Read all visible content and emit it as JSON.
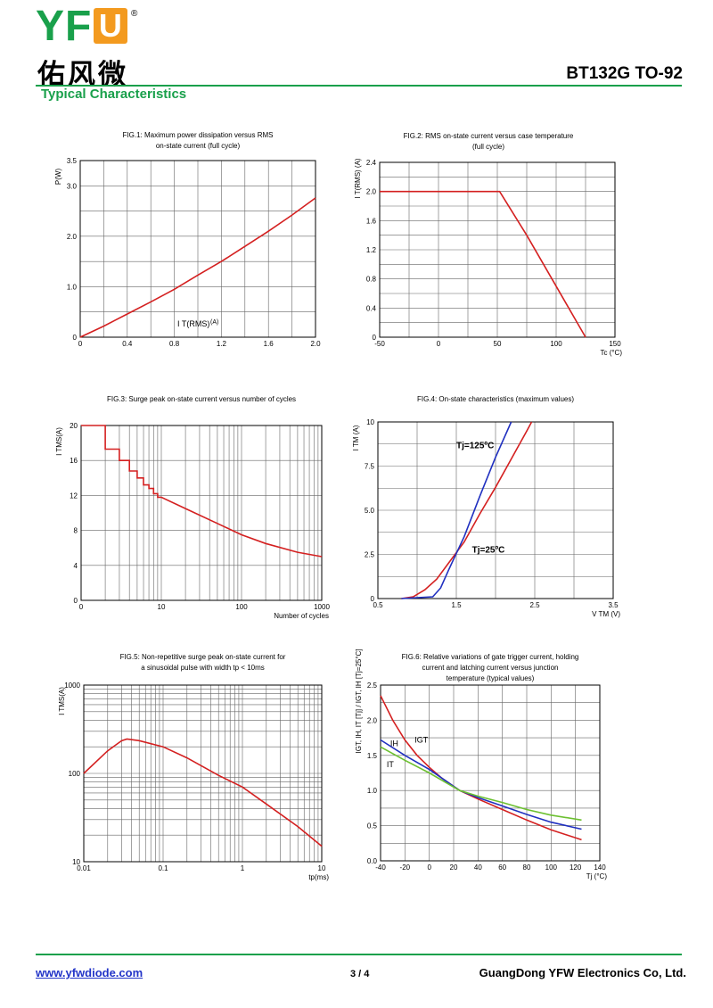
{
  "header": {
    "logo_text": "YFW",
    "logo_cn": "佑风微",
    "registered_mark": "®",
    "doc_title": "BT132G TO-92",
    "section_title": "Typical Characteristics"
  },
  "footer": {
    "website": "www.yfwdiode.com",
    "page": "3 / 4",
    "company": "GuangDong YFW Electronics Co, Ltd."
  },
  "colors": {
    "brand_green": "#19a04b",
    "brand_orange": "#f39a1f",
    "curve_red": "#d42020",
    "curve_blue": "#2030c0",
    "curve_green": "#6cc030",
    "link_blue": "#2234c8"
  },
  "chart_data": [
    {
      "id": "fig1",
      "type": "line",
      "title": [
        "FIG.1: Maximum power dissipation versus RMS",
        "on-state current (full cycle)"
      ],
      "xlabel": "I T(RMS) (A)",
      "ylabel": "P(W)",
      "xlim": [
        0,
        2.0
      ],
      "ylim": [
        0,
        3.5
      ],
      "xticks": [
        {
          "v": 0,
          "l": "0"
        },
        {
          "v": 0.4,
          "l": "0.4"
        },
        {
          "v": 0.8,
          "l": "0.8"
        },
        {
          "v": 1.2,
          "l": "1.2"
        },
        {
          "v": 1.6,
          "l": "1.6"
        },
        {
          "v": 2.0,
          "l": "2.0"
        }
      ],
      "yticks": [
        {
          "v": 0,
          "l": "0"
        },
        {
          "v": 1.0,
          "l": "1.0"
        },
        {
          "v": 2.0,
          "l": "2.0"
        },
        {
          "v": 3.0,
          "l": "3.0"
        },
        {
          "v": 3.5,
          "l": "3.5"
        }
      ],
      "grid_x": [
        0.2,
        0.4,
        0.6,
        0.8,
        1.0,
        1.2,
        1.4,
        1.6,
        1.8
      ],
      "grid_y": [
        0.5,
        1.0,
        1.5,
        2.0,
        2.5,
        3.0
      ],
      "series": [
        {
          "color": "#d42020",
          "points": [
            [
              0,
              0
            ],
            [
              0.2,
              0.22
            ],
            [
              0.4,
              0.46
            ],
            [
              0.6,
              0.7
            ],
            [
              0.8,
              0.95
            ],
            [
              1.0,
              1.23
            ],
            [
              1.2,
              1.5
            ],
            [
              1.4,
              1.8
            ],
            [
              1.6,
              2.1
            ],
            [
              1.8,
              2.42
            ],
            [
              2.0,
              2.76
            ]
          ]
        }
      ]
    },
    {
      "id": "fig2",
      "type": "line",
      "title": [
        "FIG.2: RMS on-state current versus case temperature",
        "(full cycle)"
      ],
      "xlabel": "Tc (°C)",
      "ylabel": "I T(RMS) (A)",
      "xlim": [
        -50,
        150
      ],
      "ylim": [
        0,
        2.4
      ],
      "xticks": [
        {
          "v": -50,
          "l": "-50"
        },
        {
          "v": 0,
          "l": "0"
        },
        {
          "v": 50,
          "l": "50"
        },
        {
          "v": 100,
          "l": "100"
        },
        {
          "v": 150,
          "l": "150"
        }
      ],
      "yticks": [
        {
          "v": 0,
          "l": "0"
        },
        {
          "v": 0.4,
          "l": "0.4"
        },
        {
          "v": 0.8,
          "l": "0.8"
        },
        {
          "v": 1.2,
          "l": "1.2"
        },
        {
          "v": 1.6,
          "l": "1.6"
        },
        {
          "v": 2.0,
          "l": "2.0"
        },
        {
          "v": 2.4,
          "l": "2.4"
        }
      ],
      "grid_x": [
        -25,
        0,
        25,
        50,
        75,
        100,
        125
      ],
      "grid_y": [
        0.2,
        0.4,
        0.6,
        0.8,
        1.0,
        1.2,
        1.4,
        1.6,
        1.8,
        2.0,
        2.2
      ],
      "series": [
        {
          "color": "#d42020",
          "points": [
            [
              -50,
              2.0
            ],
            [
              52,
              2.0
            ],
            [
              75,
              1.4
            ],
            [
              100,
              0.7
            ],
            [
              125,
              0
            ]
          ]
        }
      ]
    },
    {
      "id": "fig3",
      "type": "line",
      "title": [
        "FIG.3: Surge peak on-state current versus number of cycles"
      ],
      "xlabel": "Number of cycles",
      "ylabel": "I TMS(A)",
      "xscale": "log",
      "xlim": [
        1,
        1000
      ],
      "ylim": [
        0,
        20
      ],
      "xticks": [
        {
          "v": 1,
          "l": "0"
        },
        {
          "v": 10,
          "l": "10"
        },
        {
          "v": 100,
          "l": "100"
        },
        {
          "v": 1000,
          "l": "1000"
        }
      ],
      "yticks": [
        {
          "v": 0,
          "l": "0"
        },
        {
          "v": 4,
          "l": "4"
        },
        {
          "v": 8,
          "l": "8"
        },
        {
          "v": 12,
          "l": "12"
        },
        {
          "v": 16,
          "l": "16"
        },
        {
          "v": 20,
          "l": "20"
        }
      ],
      "grid_x": [
        2,
        3,
        4,
        5,
        6,
        7,
        8,
        9,
        10,
        20,
        30,
        40,
        50,
        60,
        70,
        80,
        90,
        100,
        200,
        300,
        400,
        500,
        600,
        700,
        800,
        900
      ],
      "grid_y": [
        4,
        8,
        12,
        16
      ],
      "series": [
        {
          "color": "#d42020",
          "points": [
            [
              1,
              20
            ],
            [
              2,
              20
            ],
            [
              2,
              17.3
            ],
            [
              3,
              17.3
            ],
            [
              3,
              16
            ],
            [
              4,
              16
            ],
            [
              4,
              14.8
            ],
            [
              5,
              14.8
            ],
            [
              5,
              14
            ],
            [
              6,
              14
            ],
            [
              6,
              13.2
            ],
            [
              7,
              13.2
            ],
            [
              7,
              12.8
            ],
            [
              8,
              12.8
            ],
            [
              8,
              12.2
            ],
            [
              9,
              12.2
            ],
            [
              9,
              11.8
            ],
            [
              10,
              11.8
            ],
            [
              20,
              10.5
            ],
            [
              50,
              8.8
            ],
            [
              100,
              7.5
            ],
            [
              200,
              6.5
            ],
            [
              500,
              5.5
            ],
            [
              1000,
              5.0
            ]
          ]
        }
      ]
    },
    {
      "id": "fig4",
      "type": "line",
      "title": [
        "FIG.4: On-state characteristics (maximum values)"
      ],
      "xlabel": "V TM (V)",
      "ylabel": "I TM (A)",
      "xlim": [
        0.5,
        3.5
      ],
      "ylim": [
        0,
        10
      ],
      "xticks": [
        {
          "v": 0.5,
          "l": "0.5"
        },
        {
          "v": 1.5,
          "l": "1.5"
        },
        {
          "v": 2.5,
          "l": "2.5"
        },
        {
          "v": 3.5,
          "l": "3.5"
        }
      ],
      "yticks": [
        {
          "v": 0,
          "l": "0"
        },
        {
          "v": 2.5,
          "l": "2.5"
        },
        {
          "v": 5.0,
          "l": "5.0"
        },
        {
          "v": 7.5,
          "l": "7.5"
        },
        {
          "v": 10,
          "l": "10"
        }
      ],
      "grid_x": [
        1.0,
        1.5,
        2.0,
        2.5,
        3.0
      ],
      "grid_y": [
        1.25,
        2.5,
        3.75,
        5.0,
        6.25,
        7.5,
        8.75
      ],
      "labels": [
        {
          "text": "Tj=125ºC",
          "x": 1.5,
          "y": 8.5
        },
        {
          "text": "Tj=25ºC",
          "x": 1.7,
          "y": 2.6
        }
      ],
      "series": [
        {
          "name": "Tj=25ºC",
          "color": "#d42020",
          "points": [
            [
              0.8,
              0
            ],
            [
              0.95,
              0.1
            ],
            [
              1.1,
              0.5
            ],
            [
              1.25,
              1.1
            ],
            [
              1.4,
              2.0
            ],
            [
              1.6,
              3.2
            ],
            [
              1.8,
              4.8
            ],
            [
              2.0,
              6.3
            ],
            [
              2.2,
              7.9
            ],
            [
              2.4,
              9.5
            ],
            [
              2.46,
              10
            ]
          ]
        },
        {
          "name": "Tj=125ºC",
          "color": "#2030c0",
          "points": [
            [
              0.8,
              0
            ],
            [
              1.2,
              0.1
            ],
            [
              1.3,
              0.6
            ],
            [
              1.4,
              1.6
            ],
            [
              1.6,
              3.5
            ],
            [
              1.8,
              5.8
            ],
            [
              2.0,
              8.0
            ],
            [
              2.2,
              10
            ]
          ]
        }
      ]
    },
    {
      "id": "fig5",
      "type": "line",
      "title": [
        "FIG.5: Non-repetitive surge peak on-state current for",
        "a sinusoidal pulse with width tp < 10ms"
      ],
      "xlabel": "tp(ms)",
      "ylabel": "I TMS(A)",
      "xscale": "log",
      "yscale": "log",
      "xlim": [
        0.01,
        10
      ],
      "ylim": [
        10,
        1000
      ],
      "xticks": [
        {
          "v": 0.01,
          "l": "0.01"
        },
        {
          "v": 0.1,
          "l": "0.1"
        },
        {
          "v": 1,
          "l": "1"
        },
        {
          "v": 10,
          "l": "10"
        }
      ],
      "yticks": [
        {
          "v": 10,
          "l": "10"
        },
        {
          "v": 100,
          "l": "100"
        },
        {
          "v": 1000,
          "l": "1000"
        }
      ],
      "grid_x": [
        0.02,
        0.03,
        0.04,
        0.05,
        0.06,
        0.07,
        0.08,
        0.09,
        0.1,
        0.2,
        0.3,
        0.4,
        0.5,
        0.6,
        0.7,
        0.8,
        0.9,
        1,
        2,
        3,
        4,
        5,
        6,
        7,
        8,
        9
      ],
      "grid_y": [
        20,
        30,
        40,
        50,
        60,
        70,
        80,
        90,
        100,
        200,
        300,
        400,
        500,
        600,
        700,
        800,
        900
      ],
      "series": [
        {
          "color": "#d42020",
          "points": [
            [
              0.01,
              100
            ],
            [
              0.02,
              180
            ],
            [
              0.03,
              235
            ],
            [
              0.035,
              245
            ],
            [
              0.05,
              235
            ],
            [
              0.1,
              200
            ],
            [
              0.2,
              150
            ],
            [
              0.5,
              95
            ],
            [
              1,
              70
            ],
            [
              2,
              45
            ],
            [
              5,
              25
            ],
            [
              10,
              15
            ]
          ]
        }
      ]
    },
    {
      "id": "fig6",
      "type": "line",
      "title": [
        "FIG.6: Relative variations of gate trigger current, holding",
        "current and latching current versus junction",
        "temperature (typical values)"
      ],
      "xlabel": "Tj (°C)",
      "ylabel": "IGT, IH, IT [Tj] / IGT, IH [Tj=25°C]",
      "xlim": [
        -40,
        140
      ],
      "ylim": [
        0,
        2.5
      ],
      "xticks": [
        {
          "v": -40,
          "l": "-40"
        },
        {
          "v": -20,
          "l": "-20"
        },
        {
          "v": 0,
          "l": "0"
        },
        {
          "v": 20,
          "l": "20"
        },
        {
          "v": 40,
          "l": "40"
        },
        {
          "v": 60,
          "l": "60"
        },
        {
          "v": 80,
          "l": "80"
        },
        {
          "v": 100,
          "l": "100"
        },
        {
          "v": 120,
          "l": "120"
        },
        {
          "v": 140,
          "l": "140"
        }
      ],
      "yticks": [
        {
          "v": 0,
          "l": "0.0"
        },
        {
          "v": 0.5,
          "l": "0.5"
        },
        {
          "v": 1.0,
          "l": "1.0"
        },
        {
          "v": 1.5,
          "l": "1.5"
        },
        {
          "v": 2.0,
          "l": "2.0"
        },
        {
          "v": 2.5,
          "l": "2.5"
        }
      ],
      "grid_x": [
        -20,
        0,
        20,
        40,
        60,
        80,
        100,
        120
      ],
      "grid_y": [
        0.25,
        0.5,
        0.75,
        1.0,
        1.25,
        1.5,
        1.75,
        2.0,
        2.25
      ],
      "labels": [
        {
          "text": "IH",
          "x": -32,
          "y": 1.63
        },
        {
          "text": "IGT",
          "x": -12,
          "y": 1.68
        },
        {
          "text": "IT",
          "x": -35,
          "y": 1.33
        }
      ],
      "series": [
        {
          "name": "IGT",
          "color": "#d42020",
          "points": [
            [
              -40,
              2.35
            ],
            [
              -30,
              2.0
            ],
            [
              -20,
              1.72
            ],
            [
              -10,
              1.5
            ],
            [
              0,
              1.33
            ],
            [
              10,
              1.18
            ],
            [
              25,
              1.0
            ],
            [
              40,
              0.88
            ],
            [
              60,
              0.73
            ],
            [
              80,
              0.58
            ],
            [
              100,
              0.44
            ],
            [
              125,
              0.3
            ]
          ]
        },
        {
          "name": "IH",
          "color": "#2030c0",
          "points": [
            [
              -40,
              1.72
            ],
            [
              -20,
              1.5
            ],
            [
              0,
              1.3
            ],
            [
              25,
              1.0
            ],
            [
              40,
              0.9
            ],
            [
              60,
              0.78
            ],
            [
              80,
              0.66
            ],
            [
              100,
              0.55
            ],
            [
              125,
              0.45
            ]
          ]
        },
        {
          "name": "IT",
          "color": "#6cc030",
          "points": [
            [
              -40,
              1.62
            ],
            [
              -20,
              1.43
            ],
            [
              0,
              1.25
            ],
            [
              25,
              1.0
            ],
            [
              40,
              0.92
            ],
            [
              60,
              0.83
            ],
            [
              80,
              0.73
            ],
            [
              100,
              0.65
            ],
            [
              125,
              0.58
            ]
          ]
        }
      ]
    }
  ]
}
